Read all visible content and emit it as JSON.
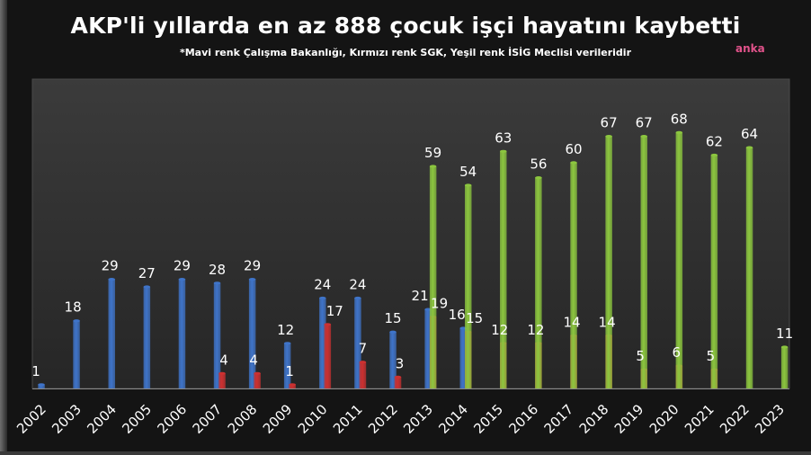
{
  "title": "AKP'li yıllarda en az 888 çocuk işçi hayatını kaybetti",
  "subtitle": "*Mavi renk Çalışma Bakanlığı, Kırmızı renk SGK, Yeşil renk İSİG Meclisi verileridir",
  "logo_text": "anka",
  "colors": {
    "blue": "#3f74c9",
    "red": "#cc3131",
    "green": "#8cc63f",
    "plot_background": "#2e2e2e",
    "label_text": "#ffffff"
  },
  "chart_data": {
    "type": "bar",
    "title": "AKP'li yıllarda en az 888 çocuk işçi hayatını kaybetti",
    "subtitle": "*Mavi renk Çalışma Bakanlığı, Kırmızı renk SGK, Yeşil renk İSİG Meclisi verileridir",
    "xlabel": "",
    "ylabel": "",
    "ylim": [
      0,
      70
    ],
    "grid": false,
    "legend": "none",
    "categories": [
      "2002",
      "2003",
      "2004",
      "2005",
      "2006",
      "2007",
      "2008",
      "2009",
      "2010",
      "2011",
      "2012",
      "2013",
      "2014",
      "2015",
      "2016",
      "2017",
      "2018",
      "2019",
      "2020",
      "2021",
      "2022",
      "2023"
    ],
    "series": [
      {
        "color": "#3f74c9",
        "values": [
          1,
          18,
          29,
          27,
          29,
          28,
          29,
          12,
          24,
          24,
          15,
          21,
          16,
          null,
          null,
          null,
          null,
          null,
          null,
          null,
          null,
          null
        ]
      },
      {
        "color": "#cc3131",
        "values": [
          null,
          null,
          null,
          null,
          null,
          4,
          4,
          1,
          17,
          7,
          3,
          19,
          15,
          12,
          12,
          14,
          14,
          5,
          6,
          5,
          null,
          null
        ]
      },
      {
        "color": "#8cc63f",
        "values": [
          null,
          null,
          null,
          null,
          null,
          null,
          null,
          null,
          null,
          null,
          null,
          59,
          54,
          63,
          56,
          60,
          67,
          67,
          68,
          62,
          64,
          11
        ]
      }
    ]
  }
}
